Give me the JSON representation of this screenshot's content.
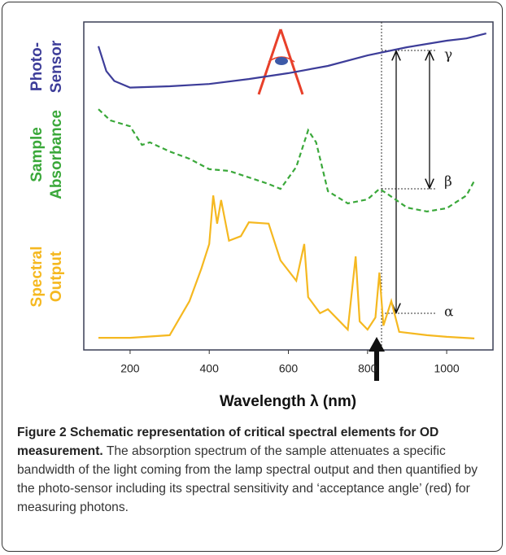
{
  "chart_data": {
    "type": "line",
    "x_label": "Wavelength λ (nm)",
    "xlim": [
      83,
      1117
    ],
    "xticks": [
      200,
      400,
      600,
      800,
      1000
    ],
    "ylim": [
      0,
      100
    ],
    "annotations": [
      "γ",
      "β",
      "α"
    ],
    "series": [
      {
        "name": "Photo- Sensor",
        "color": "#3d3d99",
        "dash": false,
        "x": [
          120,
          140,
          160,
          200,
          300,
          400,
          500,
          600,
          700,
          800,
          900,
          1000,
          1050,
          1100
        ],
        "values": [
          92.6,
          85,
          82,
          80,
          80.4,
          81.1,
          82.6,
          84.4,
          86.6,
          89.8,
          92.3,
          94.3,
          95,
          96.5
        ]
      },
      {
        "name": "Sample Absorbance",
        "color": "#3aa83a",
        "dash": true,
        "x": [
          120,
          150,
          200,
          230,
          250,
          300,
          350,
          400,
          450,
          500,
          550,
          580,
          620,
          650,
          670,
          700,
          750,
          800,
          830,
          850,
          900,
          950,
          1000,
          1050,
          1070
        ],
        "values": [
          73.4,
          70,
          68.2,
          62.5,
          63.3,
          60.5,
          58.3,
          55.1,
          54.6,
          52.6,
          50.6,
          49.1,
          55.8,
          67,
          63.3,
          48.4,
          44.7,
          45.9,
          49.1,
          47.6,
          43.4,
          42.2,
          43.2,
          47.1,
          51.6
        ]
      },
      {
        "name": "Spectral Output",
        "color": "#f5b820",
        "dash": false,
        "x": [
          120,
          200,
          300,
          350,
          380,
          400,
          410,
          420,
          430,
          450,
          480,
          500,
          550,
          580,
          620,
          640,
          650,
          680,
          700,
          750,
          770,
          780,
          800,
          820,
          830,
          840,
          860,
          880,
          950,
          1000,
          1070
        ],
        "values": [
          3.7,
          3.7,
          4.5,
          14.9,
          24.8,
          32.3,
          47.1,
          38.5,
          45.7,
          33.3,
          34.7,
          38.9,
          38.5,
          27.3,
          21.1,
          32.3,
          16.1,
          11.2,
          12.4,
          6.2,
          28.5,
          8.7,
          6.2,
          9.9,
          23.6,
          7.4,
          14.9,
          5.5,
          4.5,
          4,
          3.5
        ]
      }
    ]
  },
  "caption": {
    "title": "Figure 2 Schematic representation of critical spectral elements for OD measurement.",
    "text": "The absorption spectrum of the sample attenuates a specific bandwidth of the light coming from the lamp spectral output and then quantified by the photo-sensor including its spectral sensitivity and ‘acceptance angle’ (red) for measuring photons."
  }
}
